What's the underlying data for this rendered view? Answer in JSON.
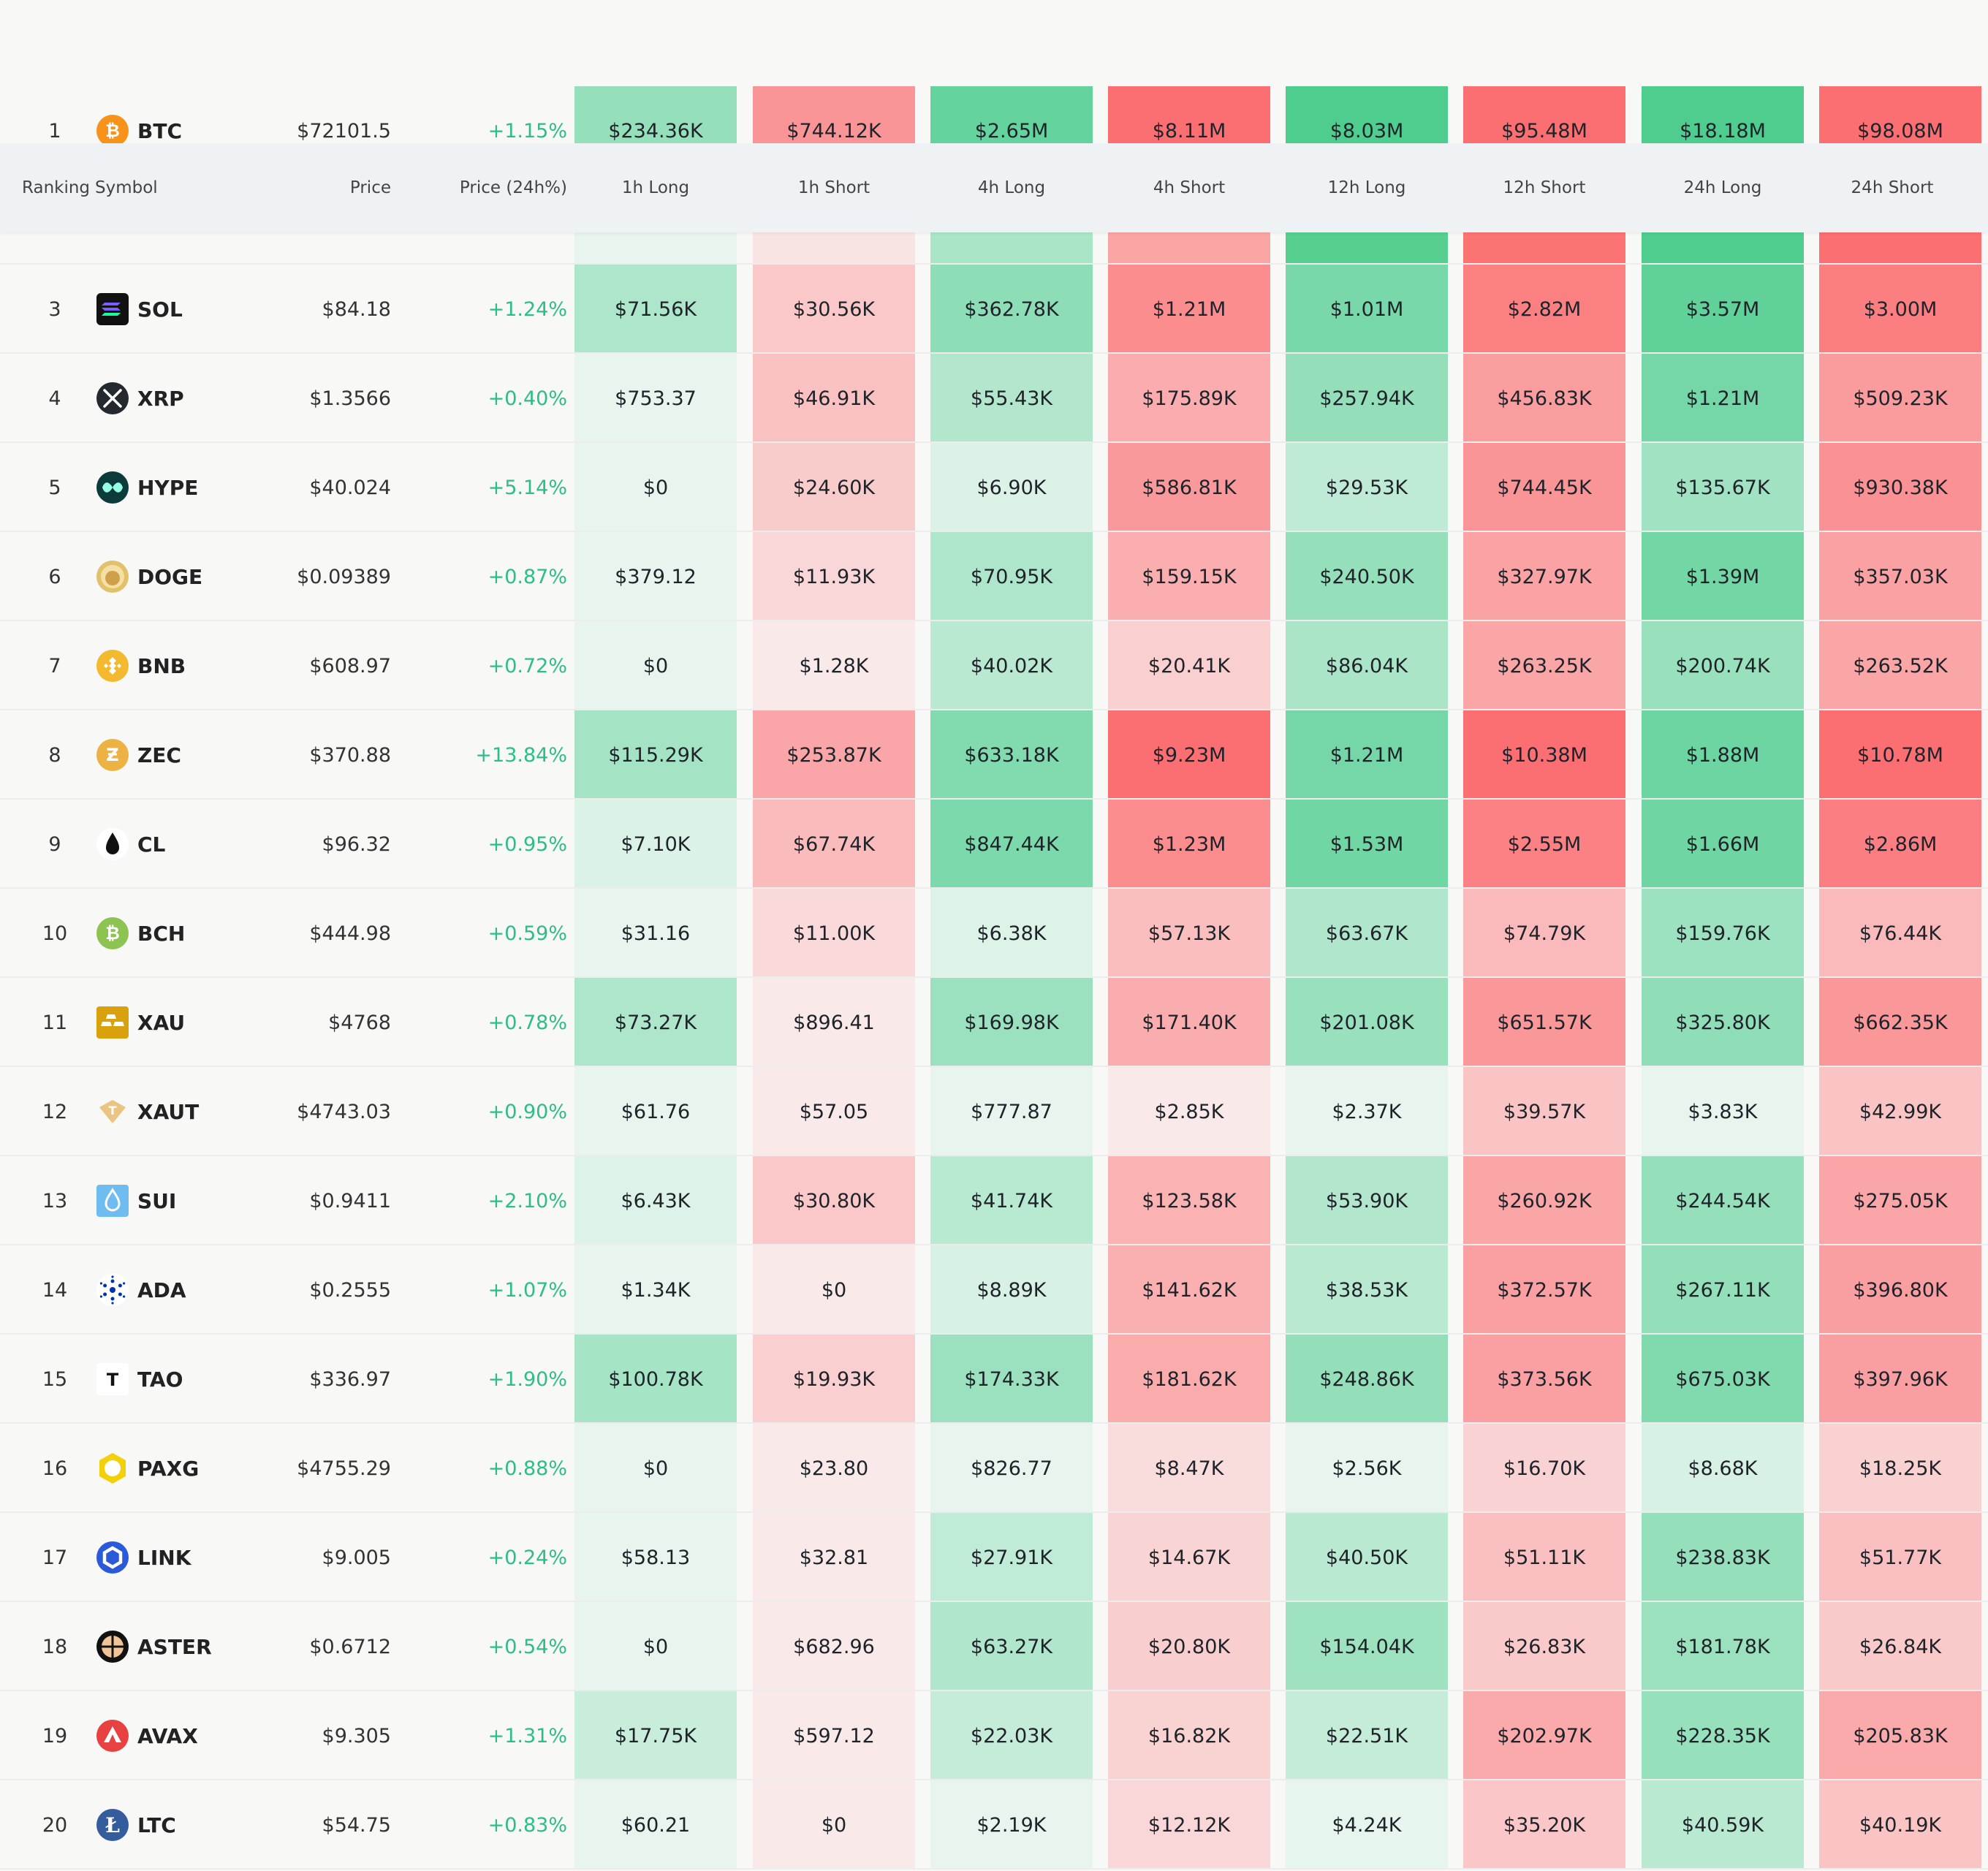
{
  "header": {
    "ranking": "Ranking",
    "symbol": "Symbol",
    "price": "Price",
    "change": "Price (24h%)",
    "periods": [
      "1h Long",
      "1h Short",
      "4h Long",
      "4h Short",
      "12h Long",
      "12h Short",
      "24h Long",
      "24h Short"
    ]
  },
  "colors": {
    "positive_text": "#2ebd85",
    "long_strong": "#4fcd8f",
    "long_light": "#e7f5ee",
    "short_strong": "#fb6f72",
    "short_light": "#f9e9e9"
  },
  "rows": [
    {
      "rank": "1",
      "symbol": "BTC",
      "icon": "btc-icon",
      "price": "$72101.5",
      "change": "+1.15%",
      "values": [
        "$234.36K",
        "$744.12K",
        "$2.65M",
        "$8.11M",
        "$8.03M",
        "$95.48M",
        "$18.18M",
        "$98.08M"
      ]
    },
    {
      "rank": "3",
      "symbol": "SOL",
      "icon": "sol-icon",
      "price": "$84.18",
      "change": "+1.24%",
      "values": [
        "$71.56K",
        "$30.56K",
        "$362.78K",
        "$1.21M",
        "$1.01M",
        "$2.82M",
        "$3.57M",
        "$3.00M"
      ]
    },
    {
      "rank": "4",
      "symbol": "XRP",
      "icon": "xrp-icon",
      "price": "$1.3566",
      "change": "+0.40%",
      "values": [
        "$753.37",
        "$46.91K",
        "$55.43K",
        "$175.89K",
        "$257.94K",
        "$456.83K",
        "$1.21M",
        "$509.23K"
      ]
    },
    {
      "rank": "5",
      "symbol": "HYPE",
      "icon": "hype-icon",
      "price": "$40.024",
      "change": "+5.14%",
      "values": [
        "$0",
        "$24.60K",
        "$6.90K",
        "$586.81K",
        "$29.53K",
        "$744.45K",
        "$135.67K",
        "$930.38K"
      ]
    },
    {
      "rank": "6",
      "symbol": "DOGE",
      "icon": "doge-icon",
      "price": "$0.09389",
      "change": "+0.87%",
      "values": [
        "$379.12",
        "$11.93K",
        "$70.95K",
        "$159.15K",
        "$240.50K",
        "$327.97K",
        "$1.39M",
        "$357.03K"
      ]
    },
    {
      "rank": "7",
      "symbol": "BNB",
      "icon": "bnb-icon",
      "price": "$608.97",
      "change": "+0.72%",
      "values": [
        "$0",
        "$1.28K",
        "$40.02K",
        "$20.41K",
        "$86.04K",
        "$263.25K",
        "$200.74K",
        "$263.52K"
      ]
    },
    {
      "rank": "8",
      "symbol": "ZEC",
      "icon": "zec-icon",
      "price": "$370.88",
      "change": "+13.84%",
      "values": [
        "$115.29K",
        "$253.87K",
        "$633.18K",
        "$9.23M",
        "$1.21M",
        "$10.38M",
        "$1.88M",
        "$10.78M"
      ]
    },
    {
      "rank": "9",
      "symbol": "CL",
      "icon": "oil-drop-icon",
      "price": "$96.32",
      "change": "+0.95%",
      "values": [
        "$7.10K",
        "$67.74K",
        "$847.44K",
        "$1.23M",
        "$1.53M",
        "$2.55M",
        "$1.66M",
        "$2.86M"
      ]
    },
    {
      "rank": "10",
      "symbol": "BCH",
      "icon": "bch-icon",
      "price": "$444.98",
      "change": "+0.59%",
      "values": [
        "$31.16",
        "$11.00K",
        "$6.38K",
        "$57.13K",
        "$63.67K",
        "$74.79K",
        "$159.76K",
        "$76.44K"
      ]
    },
    {
      "rank": "11",
      "symbol": "XAU",
      "icon": "gold-bars-icon",
      "price": "$4768",
      "change": "+0.78%",
      "values": [
        "$73.27K",
        "$896.41",
        "$169.98K",
        "$171.40K",
        "$201.08K",
        "$651.57K",
        "$325.80K",
        "$662.35K"
      ]
    },
    {
      "rank": "12",
      "symbol": "XAUT",
      "icon": "xaut-icon",
      "price": "$4743.03",
      "change": "+0.90%",
      "values": [
        "$61.76",
        "$57.05",
        "$777.87",
        "$2.85K",
        "$2.37K",
        "$39.57K",
        "$3.83K",
        "$42.99K"
      ]
    },
    {
      "rank": "13",
      "symbol": "SUI",
      "icon": "sui-icon",
      "price": "$0.9411",
      "change": "+2.10%",
      "values": [
        "$6.43K",
        "$30.80K",
        "$41.74K",
        "$123.58K",
        "$53.90K",
        "$260.92K",
        "$244.54K",
        "$275.05K"
      ]
    },
    {
      "rank": "14",
      "symbol": "ADA",
      "icon": "ada-icon",
      "price": "$0.2555",
      "change": "+1.07%",
      "values": [
        "$1.34K",
        "$0",
        "$8.89K",
        "$141.62K",
        "$38.53K",
        "$372.57K",
        "$267.11K",
        "$396.80K"
      ]
    },
    {
      "rank": "15",
      "symbol": "TAO",
      "icon": "tao-icon",
      "price": "$336.97",
      "change": "+1.90%",
      "values": [
        "$100.78K",
        "$19.93K",
        "$174.33K",
        "$181.62K",
        "$248.86K",
        "$373.56K",
        "$675.03K",
        "$397.96K"
      ]
    },
    {
      "rank": "16",
      "symbol": "PAXG",
      "icon": "paxg-icon",
      "price": "$4755.29",
      "change": "+0.88%",
      "values": [
        "$0",
        "$23.80",
        "$826.77",
        "$8.47K",
        "$2.56K",
        "$16.70K",
        "$8.68K",
        "$18.25K"
      ]
    },
    {
      "rank": "17",
      "symbol": "LINK",
      "icon": "link-icon",
      "price": "$9.005",
      "change": "+0.24%",
      "values": [
        "$58.13",
        "$32.81",
        "$27.91K",
        "$14.67K",
        "$40.50K",
        "$51.11K",
        "$238.83K",
        "$51.77K"
      ]
    },
    {
      "rank": "18",
      "symbol": "ASTER",
      "icon": "aster-icon",
      "price": "$0.6712",
      "change": "+0.54%",
      "values": [
        "$0",
        "$682.96",
        "$63.27K",
        "$20.80K",
        "$154.04K",
        "$26.83K",
        "$181.78K",
        "$26.84K"
      ]
    },
    {
      "rank": "19",
      "symbol": "AVAX",
      "icon": "avax-icon",
      "price": "$9.305",
      "change": "+1.31%",
      "values": [
        "$17.75K",
        "$597.12",
        "$22.03K",
        "$16.82K",
        "$22.51K",
        "$202.97K",
        "$228.35K",
        "$205.83K"
      ]
    },
    {
      "rank": "20",
      "symbol": "LTC",
      "icon": "ltc-icon",
      "price": "$54.75",
      "change": "+0.83%",
      "values": [
        "$60.21",
        "$0",
        "$2.19K",
        "$12.12K",
        "$4.24K",
        "$35.20K",
        "$40.59K",
        "$40.19K"
      ]
    }
  ],
  "row2_heatmap": {
    "values_hidden_under_header": true,
    "shade": [
      "#e7f5ee",
      "#f9e4e4",
      "#a9e6c8",
      "#f9a5a3",
      "#57cf8f",
      "#fb7373",
      "#4fcd8f",
      "#fb6f72"
    ]
  }
}
